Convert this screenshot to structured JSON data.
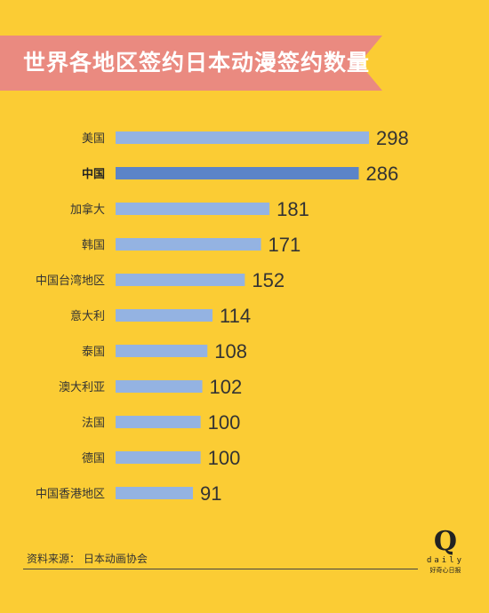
{
  "chart_data": {
    "type": "bar",
    "orientation": "horizontal",
    "title": "世界各地区签约日本动漫签约数量",
    "categories": [
      "美国",
      "中国",
      "加拿大",
      "韩国",
      "中国台湾地区",
      "意大利",
      "泰国",
      "澳大利亚",
      "法国",
      "德国",
      "中国香港地区"
    ],
    "values": [
      298,
      286,
      181,
      171,
      152,
      114,
      108,
      102,
      100,
      100,
      91
    ],
    "highlight": "中国",
    "colors": {
      "bar": "#94b3e2",
      "highlight_bar": "#5b84c8",
      "background": "#fbcc34",
      "banner": "#ea8a80"
    },
    "xlim": [
      0,
      298
    ],
    "grid": false,
    "legend": "none"
  },
  "source": "资料来源：  日本动画协会",
  "logo": {
    "mark": "Q",
    "wordmark": "daily",
    "tagline": "好奇心日报"
  }
}
